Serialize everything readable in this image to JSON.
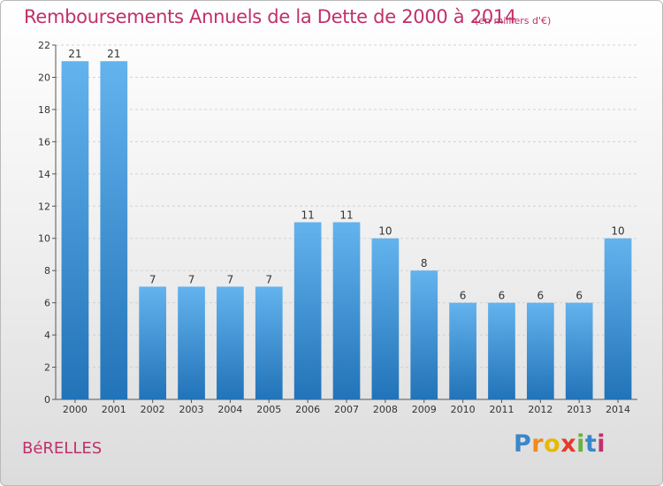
{
  "header": {
    "title": "Remboursements Annuels de la Dette de 2000 à 2014",
    "unit": "(en milliers d'€)"
  },
  "footer": {
    "commune": "BéRELLES",
    "logo_letters": [
      "P",
      "r",
      "o",
      "x",
      "i",
      "t",
      "i"
    ]
  },
  "colors": {
    "title": "#c0306a",
    "bar_top": "#63b3ee",
    "bar_bottom": "#2273b8"
  },
  "chart_data": {
    "type": "bar",
    "title": "Remboursements Annuels de la Dette de 2000 à 2014",
    "xlabel": "",
    "ylabel": "",
    "categories": [
      "2000",
      "2001",
      "2002",
      "2003",
      "2004",
      "2005",
      "2006",
      "2007",
      "2008",
      "2009",
      "2010",
      "2011",
      "2012",
      "2013",
      "2014"
    ],
    "values": [
      21,
      21,
      7,
      7,
      7,
      7,
      11,
      11,
      10,
      8,
      6,
      6,
      6,
      6,
      10
    ],
    "ylim": [
      0,
      22
    ],
    "yticks": [
      0,
      2,
      4,
      6,
      8,
      10,
      12,
      14,
      16,
      18,
      20,
      22
    ],
    "grid": true
  }
}
